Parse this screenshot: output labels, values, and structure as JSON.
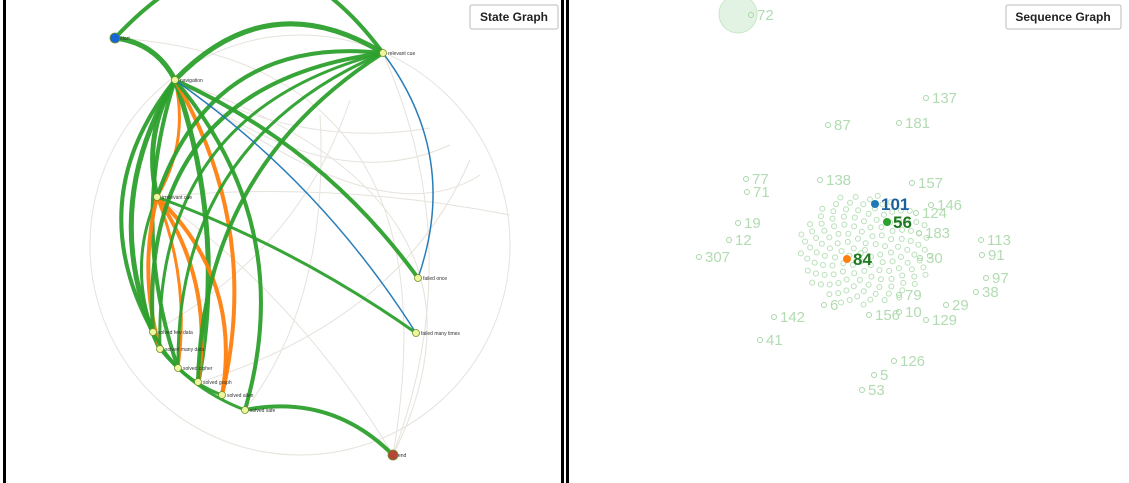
{
  "state_graph": {
    "button": "State Graph",
    "nodes": [
      {
        "label": "start"
      },
      {
        "label": "navigation"
      },
      {
        "label": "relevant cue"
      },
      {
        "label": "irrelevant cue"
      },
      {
        "label": "failed once"
      },
      {
        "label": "failed many times"
      },
      {
        "label": "solved few data"
      },
      {
        "label": "solved many data"
      },
      {
        "label": "solved cipher"
      },
      {
        "label": "solved graph"
      },
      {
        "label": "solved alien"
      },
      {
        "label": "solved safe"
      },
      {
        "label": "end"
      }
    ]
  },
  "sequence_graph": {
    "button": "Sequence Graph",
    "points": [
      {
        "label": "72"
      },
      {
        "label": "137"
      },
      {
        "label": "87"
      },
      {
        "label": "181"
      },
      {
        "label": "138"
      },
      {
        "label": "157"
      },
      {
        "label": "77"
      },
      {
        "label": "71"
      },
      {
        "label": "146"
      },
      {
        "label": "124"
      },
      {
        "label": "183"
      },
      {
        "label": "113"
      },
      {
        "label": "30"
      },
      {
        "label": "91"
      },
      {
        "label": "97"
      },
      {
        "label": "38"
      },
      {
        "label": "307"
      },
      {
        "label": "79"
      },
      {
        "label": "29"
      },
      {
        "label": "129"
      },
      {
        "label": "156"
      },
      {
        "label": "10"
      },
      {
        "label": "142"
      },
      {
        "label": "6"
      },
      {
        "label": "41"
      },
      {
        "label": "126"
      },
      {
        "label": "53"
      },
      {
        "label": "5"
      },
      {
        "label": "12"
      },
      {
        "label": "19"
      }
    ],
    "highlighted": [
      {
        "label": "101",
        "color": "#1f77b4"
      },
      {
        "label": "56",
        "color": "#2ca02c"
      },
      {
        "label": "84",
        "color": "#ff7f0e"
      }
    ]
  }
}
